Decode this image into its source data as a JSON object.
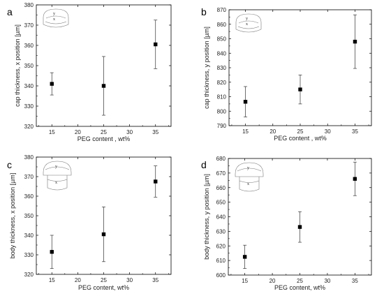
{
  "chart_data": [
    {
      "type": "scatter",
      "panel_label": "a",
      "xlabel": "PEG content , wt%",
      "ylabel": "cap thickness, x position [µm]",
      "xlim": [
        12,
        38
      ],
      "ylim": [
        320,
        380
      ],
      "xticks": [
        15,
        20,
        25,
        30,
        35
      ],
      "yticks": [
        320,
        330,
        340,
        350,
        360,
        370,
        380
      ],
      "x": [
        15,
        25,
        35
      ],
      "y": [
        341,
        340,
        360.5
      ],
      "yerr": [
        5.5,
        14.5,
        12
      ],
      "inset": {
        "labels": [
          "y",
          "x"
        ],
        "part": "cap"
      }
    },
    {
      "type": "scatter",
      "panel_label": "b",
      "xlabel": "PEG content , wt%",
      "ylabel": "cap thickness, y position [µm]",
      "xlim": [
        12,
        38
      ],
      "ylim": [
        790,
        870
      ],
      "xticks": [
        15,
        20,
        25,
        30,
        35
      ],
      "yticks": [
        790,
        800,
        810,
        820,
        830,
        840,
        850,
        860,
        870
      ],
      "x": [
        15,
        25,
        35
      ],
      "y": [
        806.5,
        815,
        848
      ],
      "yerr": [
        10.5,
        10,
        18.5
      ],
      "inset": {
        "labels": [
          "y",
          "x"
        ],
        "part": "cap"
      }
    },
    {
      "type": "scatter",
      "panel_label": "c",
      "xlabel": "PEG content, wt%",
      "ylabel": "body thickness, x position [µm]",
      "xlim": [
        12,
        38
      ],
      "ylim": [
        320,
        380
      ],
      "xticks": [
        15,
        20,
        25,
        30,
        35
      ],
      "yticks": [
        320,
        330,
        340,
        350,
        360,
        370,
        380
      ],
      "x": [
        15,
        25,
        35
      ],
      "y": [
        331.5,
        340.5,
        367.5
      ],
      "yerr": [
        8.5,
        14,
        8
      ],
      "inset": {
        "labels": [
          "y",
          "x"
        ],
        "part": "body"
      }
    },
    {
      "type": "scatter",
      "panel_label": "d",
      "xlabel": "PEG content, wt%",
      "ylabel": "body thickness, y position [µm]",
      "xlim": [
        12,
        38
      ],
      "ylim": [
        600,
        680
      ],
      "xticks": [
        15,
        20,
        25,
        30,
        35
      ],
      "yticks": [
        600,
        610,
        620,
        630,
        640,
        650,
        660,
        670,
        680
      ],
      "x": [
        15,
        25,
        35
      ],
      "y": [
        612.5,
        633,
        666
      ],
      "yerr": [
        8,
        10.5,
        11.5
      ],
      "inset": {
        "labels": [
          "y",
          "x"
        ],
        "part": "body"
      }
    }
  ]
}
